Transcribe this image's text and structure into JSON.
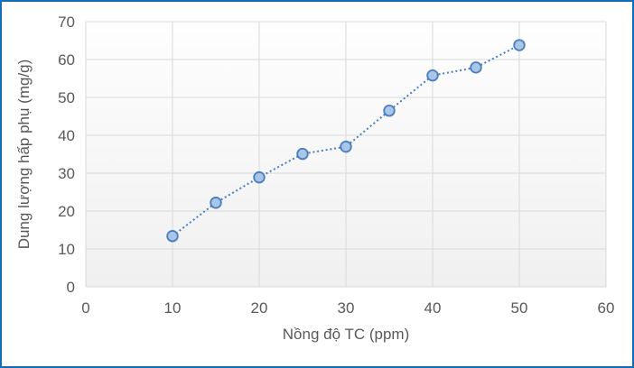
{
  "frame": {
    "border_color": "#0E6EB8",
    "background": "#FFFFFF"
  },
  "chart_data": {
    "type": "scatter",
    "title": "",
    "xlabel": "Nồng độ TC (ppm)",
    "ylabel": "Dung lượng hấp phụ (mg/g)",
    "x": [
      10,
      15,
      20,
      25,
      30,
      35,
      40,
      45,
      50
    ],
    "values": [
      13.4,
      22.2,
      28.9,
      35.1,
      37.0,
      46.5,
      55.8,
      57.9,
      63.8
    ],
    "xlim": [
      0,
      60
    ],
    "ylim": [
      0,
      70
    ],
    "x_ticks": [
      0,
      10,
      20,
      30,
      40,
      50,
      60
    ],
    "y_ticks": [
      0,
      10,
      20,
      30,
      40,
      50,
      60,
      70
    ],
    "grid": true,
    "legend": false,
    "line_style": "dotted",
    "marker": "circle",
    "colors": {
      "line": "#4A7EBD",
      "marker_fill": "#A9C6E8",
      "marker_stroke": "#4A7EBD",
      "gridline": "#D9D9D9",
      "tick_label": "#595959",
      "axis_title": "#595959",
      "plot_fill_top": "#FEFEFE",
      "plot_fill_bottom": "#F0F0F0"
    }
  }
}
